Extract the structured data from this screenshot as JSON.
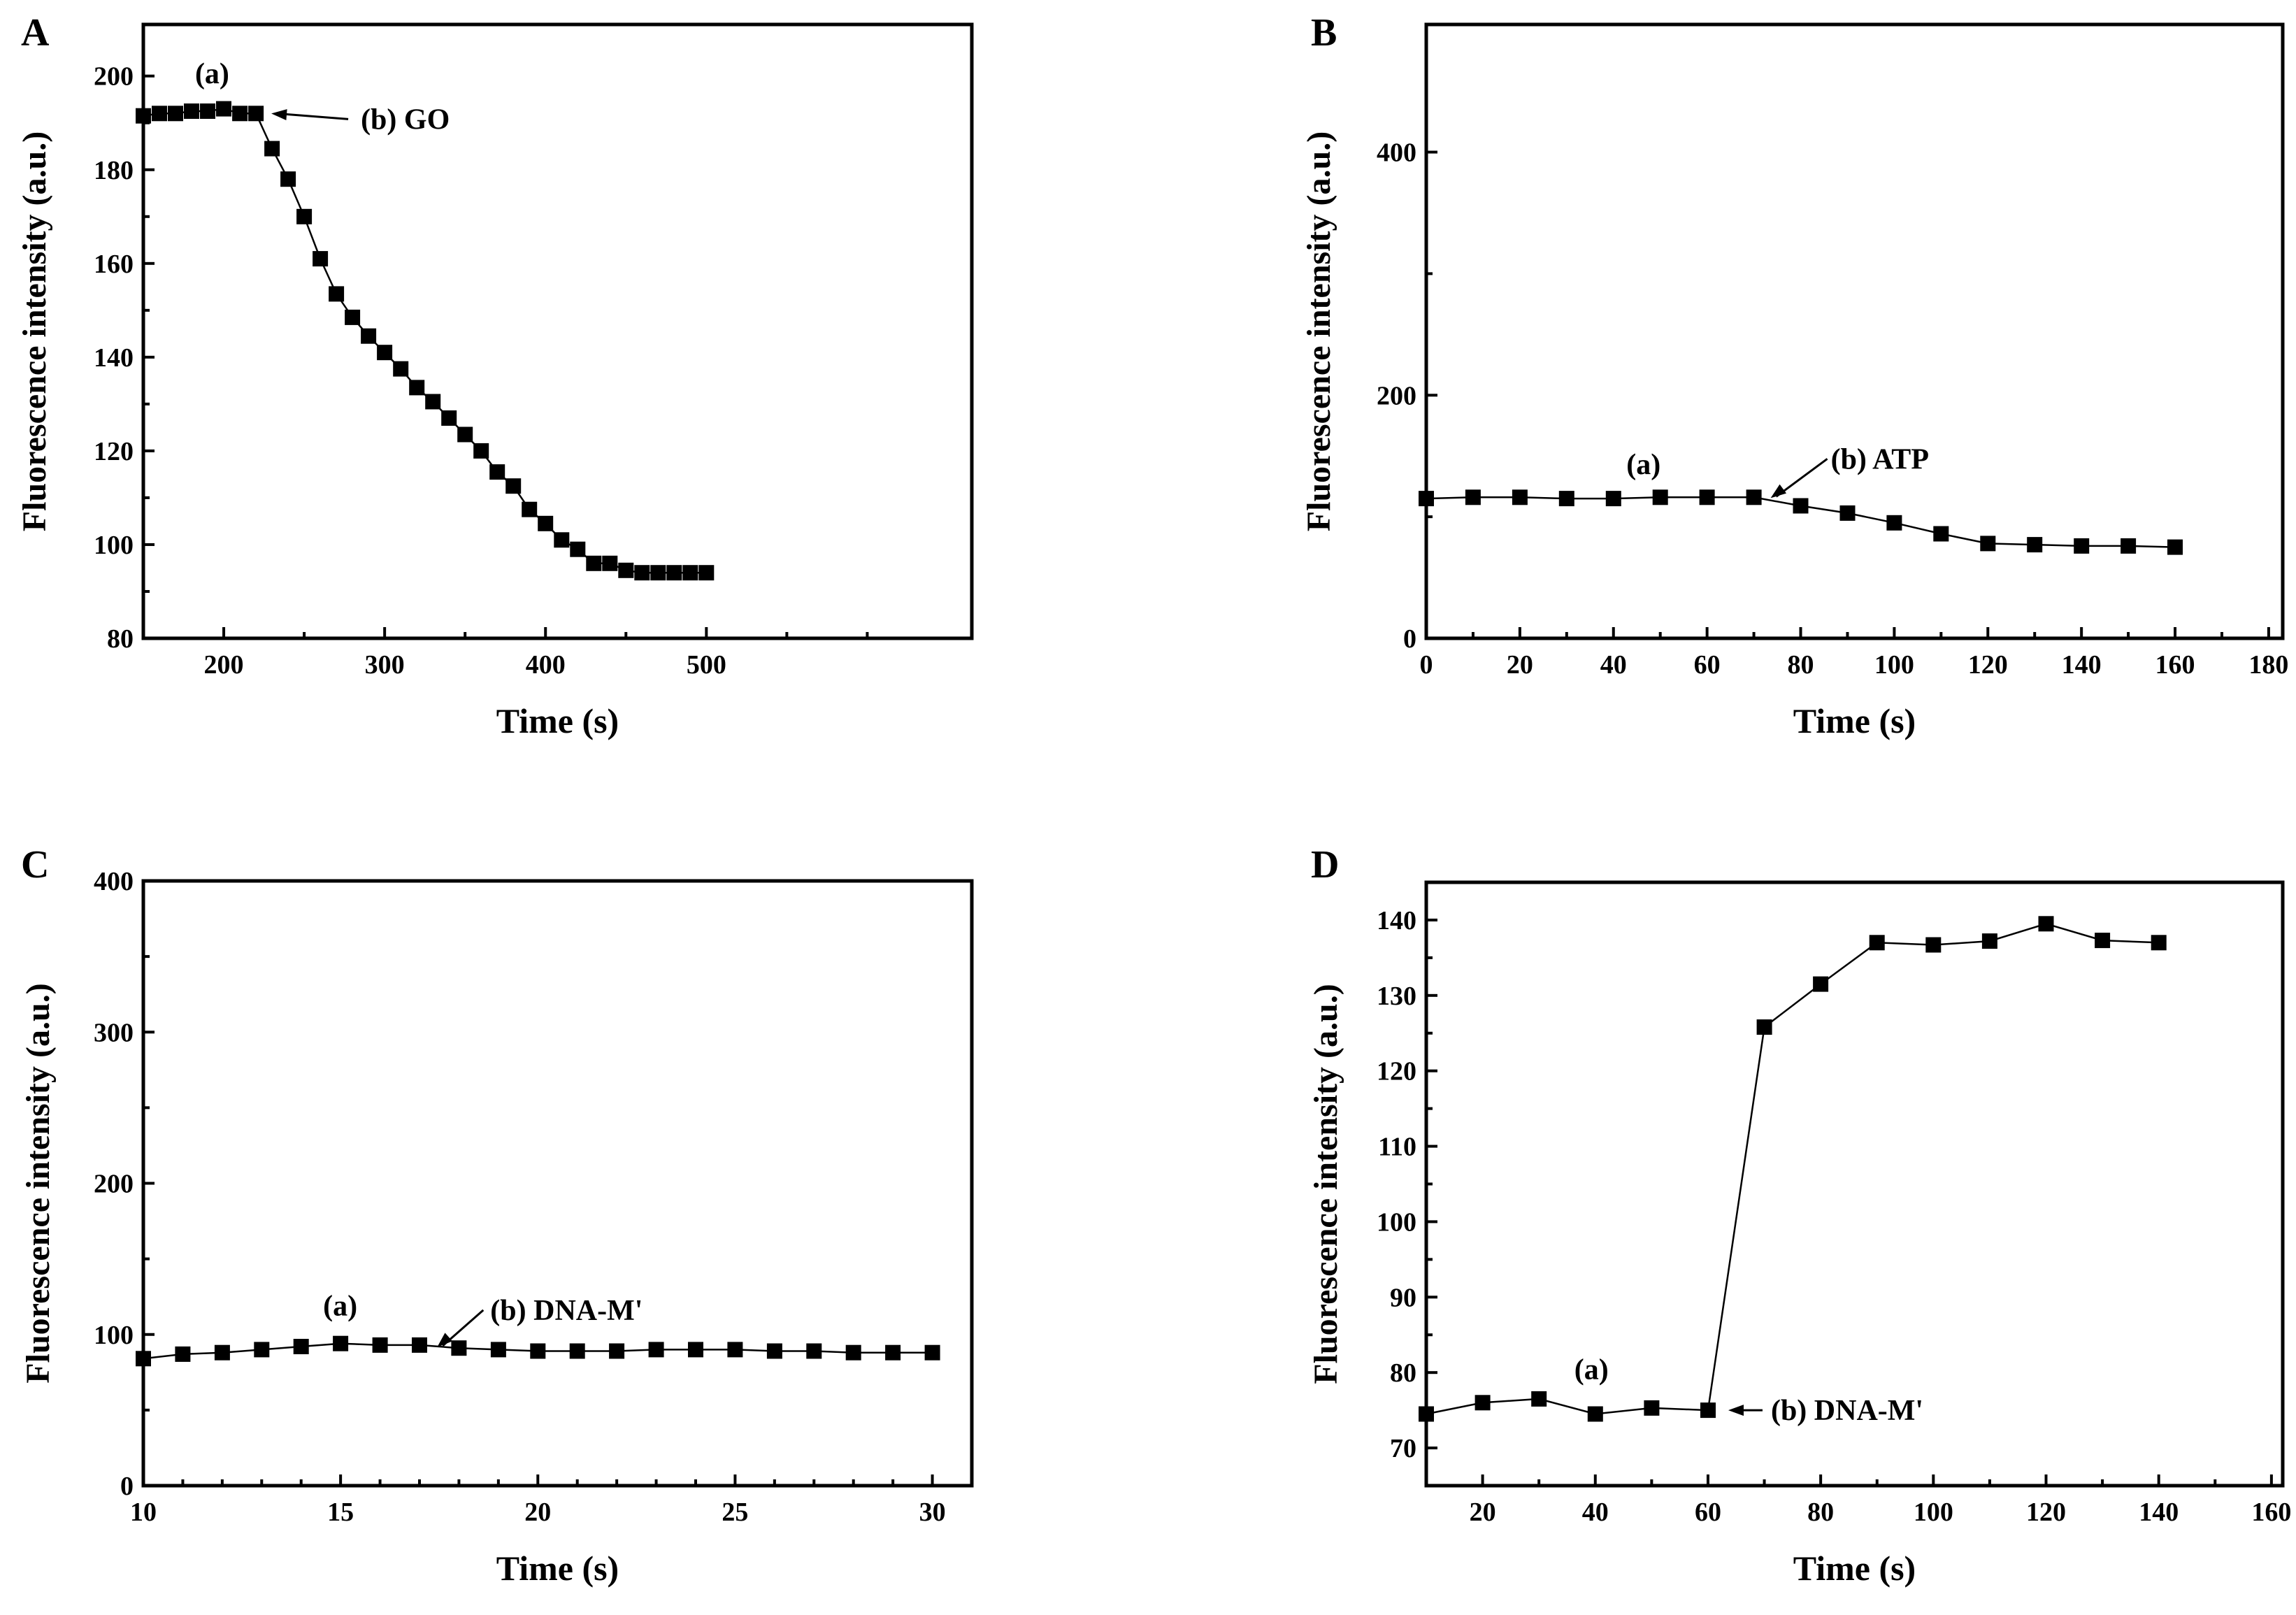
{
  "figure": {
    "panels": [
      "A",
      "B",
      "C",
      "D"
    ]
  },
  "chart_data": [
    {
      "id": "A",
      "type": "line",
      "title": "",
      "panel_label": "A",
      "xlabel": "Time (s)",
      "ylabel": "Fluorescence intensity (a.u.)",
      "xlim": [
        150,
        665
      ],
      "ylim": [
        80,
        211
      ],
      "xticks": [
        200,
        300,
        400,
        500
      ],
      "yticks": [
        80,
        100,
        120,
        140,
        160,
        180,
        200
      ],
      "x": [
        150,
        160,
        170,
        180,
        190,
        200,
        210,
        220,
        230,
        240,
        250,
        260,
        270,
        280,
        290,
        300,
        310,
        320,
        330,
        340,
        350,
        360,
        370,
        380,
        390,
        400,
        410,
        420,
        430,
        440,
        450,
        460,
        470,
        480,
        490,
        500
      ],
      "values": [
        191.5,
        192,
        192,
        192.5,
        192.5,
        193,
        192,
        192,
        184.5,
        178,
        170,
        161,
        153.5,
        148.5,
        144.5,
        141,
        137.5,
        133.5,
        130.5,
        127,
        123.5,
        120,
        115.5,
        112.5,
        107.5,
        104.5,
        101,
        99,
        96,
        96,
        94.5,
        94,
        94,
        94,
        94,
        94
      ],
      "annotations": [
        {
          "text": "(a)",
          "x": 193
        },
        {
          "text": "(b) GO",
          "x": 220
        }
      ]
    },
    {
      "id": "B",
      "type": "line",
      "title": "",
      "panel_label": "B",
      "xlabel": "Time (s)",
      "ylabel": "Fluorescence intensity (a.u.)",
      "xlim": [
        0,
        183
      ],
      "ylim": [
        0,
        505
      ],
      "xticks": [
        0,
        20,
        40,
        60,
        80,
        100,
        120,
        140,
        160,
        180
      ],
      "yticks": [
        0,
        200,
        400
      ],
      "x": [
        0,
        10,
        20,
        30,
        40,
        50,
        60,
        70,
        80,
        90,
        100,
        110,
        120,
        130,
        140,
        150,
        160
      ],
      "values": [
        115,
        116,
        116,
        115,
        115,
        116,
        116,
        116,
        109,
        103,
        95,
        86,
        78,
        77,
        76,
        76,
        75
      ],
      "annotations": [
        {
          "text": "(a)",
          "x": 45
        },
        {
          "text": "(b) ATP",
          "x": 70
        }
      ]
    },
    {
      "id": "C",
      "type": "line",
      "title": "",
      "panel_label": "C",
      "xlabel": "Time (s)",
      "ylabel": "Fluorescence intensity (a.u.)",
      "xlim": [
        10,
        31
      ],
      "ylim": [
        0,
        400
      ],
      "xticks": [
        10,
        15,
        20,
        25,
        30
      ],
      "yticks": [
        0,
        100,
        200,
        300,
        400
      ],
      "x": [
        10,
        11,
        12,
        13,
        14,
        15,
        16,
        17,
        18,
        19,
        20,
        21,
        22,
        23,
        24,
        25,
        26,
        27,
        28,
        29,
        30
      ],
      "values": [
        84,
        87,
        88,
        90,
        92,
        94,
        93,
        93,
        91,
        90,
        89,
        89,
        89,
        90,
        90,
        90,
        89,
        89,
        88,
        88,
        88
      ],
      "annotations": [
        {
          "text": "(a)",
          "x": 15
        },
        {
          "text": "(b) DNA-M'",
          "x": 17.2
        }
      ]
    },
    {
      "id": "D",
      "type": "line",
      "title": "",
      "panel_label": "D",
      "xlabel": "Time (s)",
      "ylabel": "Fluorescence intensity (a.u.)",
      "xlim": [
        10,
        162
      ],
      "ylim": [
        65,
        145
      ],
      "xticks": [
        20,
        40,
        60,
        80,
        100,
        120,
        140,
        160
      ],
      "yticks": [
        70,
        80,
        90,
        100,
        110,
        120,
        130,
        140
      ],
      "x": [
        10,
        20,
        30,
        40,
        50,
        60,
        70,
        80,
        90,
        100,
        110,
        120,
        130,
        140
      ],
      "values": [
        74.5,
        76,
        76.5,
        74.5,
        75.3,
        75,
        125.8,
        131.5,
        137,
        136.7,
        137.2,
        139.5,
        137.3,
        137
      ],
      "annotations": [
        {
          "text": "(a)",
          "x": 40
        },
        {
          "text": "(b) DNA-M'",
          "x": 60
        }
      ]
    }
  ]
}
